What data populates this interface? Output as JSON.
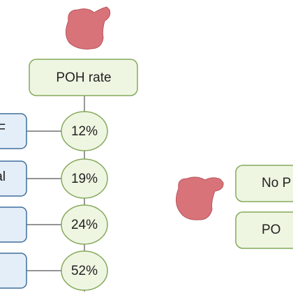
{
  "header": {
    "title": "POH rate"
  },
  "rates": [
    "12%",
    "19%",
    "24%",
    "52%"
  ],
  "left_boxes": [
    "F",
    "cal",
    "",
    ""
  ],
  "right_boxes": [
    "No P",
    "PO"
  ]
}
